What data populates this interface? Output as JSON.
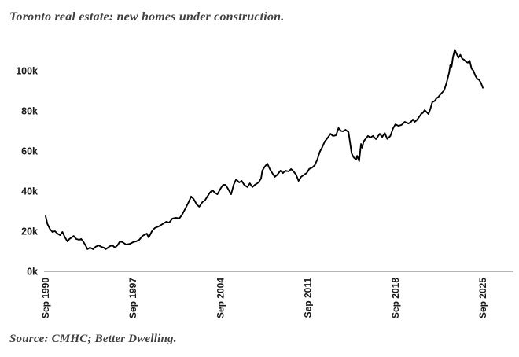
{
  "chart_data": {
    "type": "line",
    "title": "Toronto real estate: new homes under construction.",
    "source_note": "Source: CMHC; Better Dwelling.",
    "series_name": "New homes under construction",
    "x_unit": "decimal year (monthly time series, Sep 1990 - Sep 2025)",
    "y_unit": "homes under construction, thousands",
    "x_range": [
      1990.75,
      2025.75
    ],
    "y_range_labeled": [
      0,
      100
    ],
    "grid": false,
    "legend": false,
    "y_ticks": [
      {
        "label": "0k",
        "value": 0
      },
      {
        "label": "20k",
        "value": 20
      },
      {
        "label": "40k",
        "value": 40
      },
      {
        "label": "60k",
        "value": 60
      },
      {
        "label": "80k",
        "value": 80
      },
      {
        "label": "100k",
        "value": 100
      }
    ],
    "x_ticks": [
      {
        "label": "Sep 1990",
        "value": 1990.75
      },
      {
        "label": "Sep 1997",
        "value": 1997.75
      },
      {
        "label": "Sep 2004",
        "value": 2004.75
      },
      {
        "label": "Sep 2011",
        "value": 2011.75
      },
      {
        "label": "Sep 2018",
        "value": 2018.75
      },
      {
        "label": "Sep 2025",
        "value": 2025.75
      }
    ],
    "styles": {
      "line_color": "#000000",
      "axis_color": "#9b9b9b",
      "tick_label_color": "#1a1a1a",
      "title_color": "#3f3f3f"
    },
    "points": [
      [
        1990.75,
        27.5
      ],
      [
        1990.9,
        23.5
      ],
      [
        1991.1,
        21.0
      ],
      [
        1991.3,
        19.6
      ],
      [
        1991.5,
        20.0
      ],
      [
        1991.7,
        18.8
      ],
      [
        1991.9,
        18.0
      ],
      [
        1992.1,
        19.6
      ],
      [
        1992.3,
        16.9
      ],
      [
        1992.5,
        14.9
      ],
      [
        1992.65,
        16.1
      ],
      [
        1992.85,
        16.9
      ],
      [
        1993.0,
        17.6
      ],
      [
        1993.2,
        16.1
      ],
      [
        1993.45,
        15.7
      ],
      [
        1993.6,
        16.1
      ],
      [
        1993.75,
        14.9
      ],
      [
        1993.95,
        12.9
      ],
      [
        1994.1,
        11.0
      ],
      [
        1994.3,
        11.8
      ],
      [
        1994.55,
        11.0
      ],
      [
        1994.75,
        12.2
      ],
      [
        1995.0,
        12.9
      ],
      [
        1995.2,
        12.2
      ],
      [
        1995.4,
        11.8
      ],
      [
        1995.55,
        11.0
      ],
      [
        1995.75,
        11.8
      ],
      [
        1995.9,
        12.5
      ],
      [
        1996.1,
        12.9
      ],
      [
        1996.3,
        11.8
      ],
      [
        1996.5,
        12.9
      ],
      [
        1996.7,
        14.9
      ],
      [
        1996.9,
        14.5
      ],
      [
        1997.2,
        13.3
      ],
      [
        1997.5,
        13.7
      ],
      [
        1997.75,
        14.5
      ],
      [
        1998.0,
        14.9
      ],
      [
        1998.25,
        15.7
      ],
      [
        1998.5,
        17.6
      ],
      [
        1998.85,
        18.8
      ],
      [
        1999.0,
        16.9
      ],
      [
        1999.3,
        20.4
      ],
      [
        1999.5,
        21.6
      ],
      [
        1999.8,
        22.4
      ],
      [
        2000.1,
        23.5
      ],
      [
        2000.4,
        24.7
      ],
      [
        2000.65,
        24.3
      ],
      [
        2000.9,
        26.3
      ],
      [
        2001.2,
        26.7
      ],
      [
        2001.45,
        26.3
      ],
      [
        2001.7,
        28.5
      ],
      [
        2001.95,
        31.4
      ],
      [
        2002.2,
        34.5
      ],
      [
        2002.4,
        37.3
      ],
      [
        2002.6,
        36.1
      ],
      [
        2002.85,
        33.3
      ],
      [
        2003.05,
        32.2
      ],
      [
        2003.3,
        34.5
      ],
      [
        2003.5,
        35.3
      ],
      [
        2003.7,
        37.3
      ],
      [
        2003.9,
        39.2
      ],
      [
        2004.1,
        40.4
      ],
      [
        2004.3,
        39.2
      ],
      [
        2004.5,
        38.4
      ],
      [
        2004.75,
        41.2
      ],
      [
        2004.95,
        43.1
      ],
      [
        2005.15,
        43.1
      ],
      [
        2005.35,
        41.2
      ],
      [
        2005.6,
        38.4
      ],
      [
        2005.8,
        43.1
      ],
      [
        2006.0,
        45.9
      ],
      [
        2006.25,
        44.3
      ],
      [
        2006.45,
        45.1
      ],
      [
        2006.65,
        43.1
      ],
      [
        2006.9,
        42.0
      ],
      [
        2007.1,
        43.9
      ],
      [
        2007.3,
        42.0
      ],
      [
        2007.5,
        43.1
      ],
      [
        2007.8,
        44.3
      ],
      [
        2008.0,
        46.3
      ],
      [
        2008.1,
        50.2
      ],
      [
        2008.3,
        52.2
      ],
      [
        2008.5,
        53.7
      ],
      [
        2008.7,
        51.0
      ],
      [
        2008.9,
        49.0
      ],
      [
        2009.1,
        47.1
      ],
      [
        2009.3,
        48.2
      ],
      [
        2009.55,
        50.2
      ],
      [
        2009.75,
        49.0
      ],
      [
        2009.95,
        50.2
      ],
      [
        2010.2,
        49.8
      ],
      [
        2010.4,
        51.0
      ],
      [
        2010.6,
        49.8
      ],
      [
        2010.8,
        48.2
      ],
      [
        2011.0,
        45.1
      ],
      [
        2011.2,
        47.1
      ],
      [
        2011.45,
        48.2
      ],
      [
        2011.65,
        49.0
      ],
      [
        2011.85,
        51.0
      ],
      [
        2012.1,
        51.8
      ],
      [
        2012.3,
        52.9
      ],
      [
        2012.5,
        55.7
      ],
      [
        2012.7,
        59.6
      ],
      [
        2012.9,
        62.0
      ],
      [
        2013.1,
        64.7
      ],
      [
        2013.35,
        66.7
      ],
      [
        2013.55,
        68.6
      ],
      [
        2013.75,
        67.5
      ],
      [
        2014.0,
        67.8
      ],
      [
        2014.2,
        71.4
      ],
      [
        2014.4,
        70.0
      ],
      [
        2014.55,
        69.8
      ],
      [
        2014.75,
        70.6
      ],
      [
        2015.0,
        69.4
      ],
      [
        2015.25,
        58.8
      ],
      [
        2015.4,
        56.9
      ],
      [
        2015.6,
        55.7
      ],
      [
        2015.7,
        57.6
      ],
      [
        2015.85,
        54.9
      ],
      [
        2016.0,
        63.5
      ],
      [
        2016.1,
        61.6
      ],
      [
        2016.2,
        64.7
      ],
      [
        2016.35,
        65.9
      ],
      [
        2016.55,
        67.5
      ],
      [
        2016.75,
        66.7
      ],
      [
        2016.95,
        67.5
      ],
      [
        2017.2,
        65.9
      ],
      [
        2017.5,
        68.6
      ],
      [
        2017.7,
        67.0
      ],
      [
        2017.9,
        69.0
      ],
      [
        2018.1,
        66.0
      ],
      [
        2018.35,
        67.5
      ],
      [
        2018.55,
        71.0
      ],
      [
        2018.75,
        73.3
      ],
      [
        2019.0,
        72.5
      ],
      [
        2019.25,
        73.0
      ],
      [
        2019.5,
        74.5
      ],
      [
        2019.8,
        73.7
      ],
      [
        2020.0,
        74.5
      ],
      [
        2020.15,
        75.7
      ],
      [
        2020.3,
        74.5
      ],
      [
        2020.45,
        75.3
      ],
      [
        2020.6,
        76.5
      ],
      [
        2020.8,
        78.4
      ],
      [
        2020.95,
        79.0
      ],
      [
        2021.1,
        80.4
      ],
      [
        2021.4,
        78.4
      ],
      [
        2021.55,
        81.0
      ],
      [
        2021.7,
        84.3
      ],
      [
        2021.9,
        85.0
      ],
      [
        2022.05,
        86.3
      ],
      [
        2022.2,
        87.0
      ],
      [
        2022.35,
        88.2
      ],
      [
        2022.65,
        90.2
      ],
      [
        2022.85,
        94.0
      ],
      [
        2023.05,
        99.0
      ],
      [
        2023.15,
        103.0
      ],
      [
        2023.25,
        102.0
      ],
      [
        2023.35,
        106.5
      ],
      [
        2023.5,
        110.5
      ],
      [
        2023.65,
        108.5
      ],
      [
        2023.8,
        106.5
      ],
      [
        2023.95,
        108.0
      ],
      [
        2024.1,
        106.0
      ],
      [
        2024.25,
        105.5
      ],
      [
        2024.4,
        104.5
      ],
      [
        2024.55,
        104.0
      ],
      [
        2024.7,
        105.0
      ],
      [
        2024.85,
        101.0
      ],
      [
        2025.0,
        100.0
      ],
      [
        2025.15,
        97.5
      ],
      [
        2025.3,
        96.0
      ],
      [
        2025.45,
        95.5
      ],
      [
        2025.6,
        94.0
      ],
      [
        2025.75,
        91.5
      ]
    ]
  }
}
